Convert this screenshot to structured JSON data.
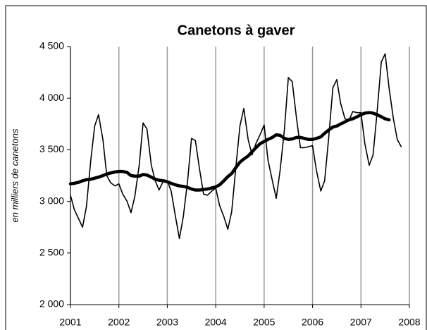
{
  "chart_data": {
    "type": "line",
    "title": "Canetons à gaver",
    "y_label": "en milliers de canetons",
    "x": [
      2001,
      2001.08,
      2001.17,
      2001.25,
      2001.33,
      2001.42,
      2001.5,
      2001.58,
      2001.67,
      2001.75,
      2001.83,
      2001.92,
      2002,
      2002.08,
      2002.17,
      2002.25,
      2002.33,
      2002.42,
      2002.5,
      2002.58,
      2002.67,
      2002.75,
      2002.83,
      2002.92,
      2003,
      2003.08,
      2003.17,
      2003.25,
      2003.33,
      2003.42,
      2003.5,
      2003.58,
      2003.67,
      2003.75,
      2003.83,
      2003.92,
      2004,
      2004.08,
      2004.17,
      2004.25,
      2004.33,
      2004.42,
      2004.5,
      2004.58,
      2004.67,
      2004.75,
      2004.83,
      2004.92,
      2005,
      2005.08,
      2005.17,
      2005.25,
      2005.33,
      2005.42,
      2005.5,
      2005.58,
      2005.67,
      2005.75,
      2005.83,
      2005.92,
      2006,
      2006.08,
      2006.17,
      2006.25,
      2006.33,
      2006.42,
      2006.5,
      2006.58,
      2006.67,
      2006.75,
      2006.83,
      2006.92,
      2007,
      2007.08,
      2007.17,
      2007.25,
      2007.33,
      2007.42,
      2007.5,
      2007.58,
      2007.67,
      2007.75,
      2007.83
    ],
    "series": [
      {
        "color": "#000000",
        "width": 1.6,
        "values": [
          3059,
          2920,
          2830,
          2750,
          2950,
          3400,
          3730,
          3840,
          3600,
          3250,
          3180,
          3150,
          3170,
          3070,
          3000,
          2890,
          3050,
          3350,
          3760,
          3700,
          3350,
          3200,
          3110,
          3200,
          3200,
          3100,
          2850,
          2640,
          2850,
          3200,
          3610,
          3590,
          3300,
          3070,
          3060,
          3100,
          3130,
          2960,
          2850,
          2730,
          2900,
          3350,
          3730,
          3900,
          3600,
          3450,
          3560,
          3650,
          3740,
          3400,
          3200,
          3030,
          3300,
          3700,
          4200,
          4160,
          3800,
          3520,
          3520,
          3530,
          3540,
          3300,
          3100,
          3200,
          3600,
          4100,
          4180,
          3950,
          3800,
          3780,
          3870,
          3860,
          3860,
          3560,
          3350,
          3450,
          3850,
          4350,
          4430,
          4100,
          3800,
          3600,
          3530
        ]
      },
      {
        "color": "#000000",
        "width": 4.5,
        "values": [
          3170,
          3175,
          3185,
          3200,
          3210,
          3215,
          3225,
          3235,
          3250,
          3265,
          3275,
          3285,
          3290,
          3290,
          3280,
          3250,
          3245,
          3245,
          3260,
          3255,
          3235,
          3215,
          3205,
          3200,
          3190,
          3175,
          3160,
          3150,
          3145,
          3135,
          3120,
          3110,
          3110,
          3115,
          3120,
          3130,
          3140,
          3160,
          3200,
          3240,
          3270,
          3330,
          3380,
          3410,
          3440,
          3480,
          3520,
          3560,
          3580,
          3600,
          3620,
          3645,
          3640,
          3610,
          3600,
          3605,
          3620,
          3620,
          3610,
          3600,
          3600,
          3610,
          3625,
          3660,
          3690,
          3720,
          3730,
          3750,
          3770,
          3790,
          3800,
          3820,
          3840,
          3855,
          3860,
          3855,
          3840,
          3820,
          3800,
          3790,
          null,
          null,
          null
        ]
      }
    ],
    "xlim": [
      2001,
      2008
    ],
    "xticks": [
      2001,
      2002,
      2003,
      2004,
      2005,
      2006,
      2007,
      2008
    ],
    "ylim": [
      2000,
      4500
    ],
    "yticks": [
      {
        "value": 2000,
        "label": "2 000"
      },
      {
        "value": 2500,
        "label": "2 500"
      },
      {
        "value": 3000,
        "label": "3 000"
      },
      {
        "value": 3500,
        "label": "3 500"
      },
      {
        "value": 4000,
        "label": "4 000"
      },
      {
        "value": 4500,
        "label": "4 500"
      }
    ],
    "grid": "x"
  }
}
